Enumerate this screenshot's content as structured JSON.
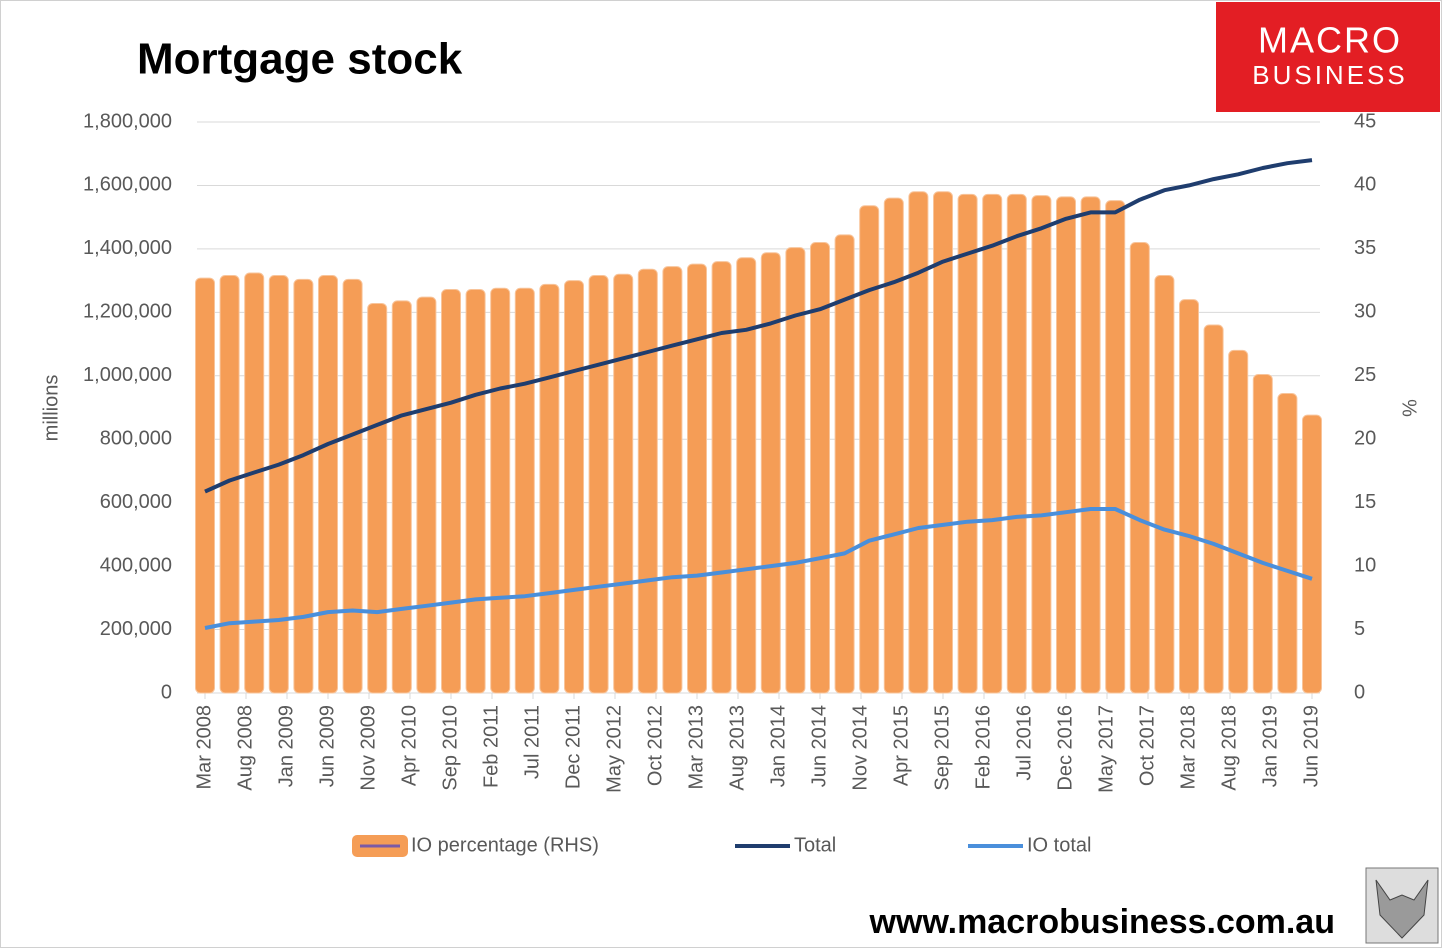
{
  "chart_data": {
    "type": "bar",
    "title": "Mortgage stock",
    "brand": [
      "MACRO",
      "BUSINESS"
    ],
    "footer": "www.macrobusiness.com.au",
    "y_label": "millions",
    "y2_label": "%",
    "x": [
      "2008-03",
      "2008-06",
      "2008-09",
      "2008-12",
      "2009-03",
      "2009-06",
      "2009-09",
      "2009-12",
      "2010-03",
      "2010-06",
      "2010-09",
      "2010-12",
      "2011-03",
      "2011-06",
      "2011-09",
      "2011-12",
      "2012-03",
      "2012-06",
      "2012-09",
      "2012-12",
      "2013-03",
      "2013-06",
      "2013-09",
      "2013-12",
      "2014-03",
      "2014-06",
      "2014-09",
      "2014-12",
      "2015-03",
      "2015-06",
      "2015-09",
      "2015-12",
      "2016-03",
      "2016-06",
      "2016-09",
      "2016-12",
      "2017-03",
      "2017-06",
      "2017-09",
      "2017-12",
      "2018-03",
      "2018-06",
      "2018-09",
      "2018-12",
      "2019-03",
      "2019-06"
    ],
    "xticks": [
      {
        "value": "2008-03",
        "label": "Mar 2008"
      },
      {
        "value": "2008-08",
        "label": "Aug 2008"
      },
      {
        "value": "2009-01",
        "label": "Jan 2009"
      },
      {
        "value": "2009-06",
        "label": "Jun 2009"
      },
      {
        "value": "2009-11",
        "label": "Nov 2009"
      },
      {
        "value": "2010-04",
        "label": "Apr 2010"
      },
      {
        "value": "2010-09",
        "label": "Sep 2010"
      },
      {
        "value": "2011-02",
        "label": "Feb 2011"
      },
      {
        "value": "2011-07",
        "label": "Jul 2011"
      },
      {
        "value": "2011-12",
        "label": "Dec 2011"
      },
      {
        "value": "2012-05",
        "label": "May 2012"
      },
      {
        "value": "2012-10",
        "label": "Oct 2012"
      },
      {
        "value": "2013-03",
        "label": "Mar 2013"
      },
      {
        "value": "2013-08",
        "label": "Aug 2013"
      },
      {
        "value": "2014-01",
        "label": "Jan 2014"
      },
      {
        "value": "2014-06",
        "label": "Jun 2014"
      },
      {
        "value": "2014-11",
        "label": "Nov 2014"
      },
      {
        "value": "2015-04",
        "label": "Apr 2015"
      },
      {
        "value": "2015-09",
        "label": "Sep 2015"
      },
      {
        "value": "2016-02",
        "label": "Feb 2016"
      },
      {
        "value": "2016-07",
        "label": "Jul 2016"
      },
      {
        "value": "2016-12",
        "label": "Dec 2016"
      },
      {
        "value": "2017-05",
        "label": "May 2017"
      },
      {
        "value": "2017-10",
        "label": "Oct 2017"
      },
      {
        "value": "2018-03",
        "label": "Mar 2018"
      },
      {
        "value": "2018-08",
        "label": "Aug 2018"
      },
      {
        "value": "2019-01",
        "label": "Jan 2019"
      },
      {
        "value": "2019-06",
        "label": "Jun 2019"
      }
    ],
    "ylim": [
      0,
      1800000
    ],
    "yticks": [
      0,
      {
        "value": 200000,
        "label": "200,000"
      },
      {
        "value": 400000,
        "label": "400,000"
      },
      {
        "value": 600000,
        "label": "600,000"
      },
      {
        "value": 800000,
        "label": "800,000"
      },
      {
        "value": 1000000,
        "label": "1,000,000"
      },
      {
        "value": 1200000,
        "label": "1,200,000"
      },
      {
        "value": 1400000,
        "label": "1,400,000"
      },
      {
        "value": 1600000,
        "label": "1,600,000"
      },
      {
        "value": 1800000,
        "label": "1,800,000"
      }
    ],
    "y2lim": [
      0,
      45
    ],
    "y2ticks": [
      0,
      5,
      10,
      15,
      20,
      25,
      30,
      35,
      40,
      45
    ],
    "grid": true,
    "series": [
      {
        "name": "IO percentage (RHS)",
        "type": "bar",
        "axis": "y2",
        "color": "#f59d56",
        "values": [
          32.7,
          32.9,
          33.1,
          32.9,
          32.6,
          32.9,
          32.6,
          30.7,
          30.9,
          31.2,
          31.8,
          31.8,
          31.9,
          31.9,
          32.2,
          32.5,
          32.9,
          33.0,
          33.4,
          33.6,
          33.8,
          34.0,
          34.3,
          34.7,
          35.1,
          35.5,
          36.1,
          38.4,
          39.0,
          39.5,
          39.5,
          39.3,
          39.3,
          39.3,
          39.2,
          39.1,
          39.1,
          38.8,
          35.5,
          32.9,
          31.0,
          29.0,
          27.0,
          25.1,
          23.6,
          21.9
        ]
      },
      {
        "name": "Total",
        "type": "line",
        "color": "#1f3d6e",
        "values": [
          635000,
          670000,
          695000,
          720000,
          750000,
          785000,
          815000,
          845000,
          875000,
          895000,
          915000,
          940000,
          960000,
          975000,
          995000,
          1015000,
          1035000,
          1055000,
          1075000,
          1095000,
          1115000,
          1135000,
          1145000,
          1165000,
          1190000,
          1210000,
          1240000,
          1270000,
          1295000,
          1325000,
          1360000,
          1385000,
          1410000,
          1440000,
          1465000,
          1495000,
          1515000,
          1515000,
          1555000,
          1585000,
          1600000,
          1620000,
          1635000,
          1655000,
          1670000,
          1680000
        ]
      },
      {
        "name": "IO total",
        "type": "line",
        "color": "#4a8fdb",
        "values": [
          205000,
          220000,
          225000,
          230000,
          240000,
          255000,
          260000,
          255000,
          265000,
          275000,
          285000,
          295000,
          300000,
          305000,
          315000,
          325000,
          335000,
          345000,
          355000,
          365000,
          370000,
          380000,
          390000,
          400000,
          410000,
          425000,
          440000,
          480000,
          500000,
          520000,
          530000,
          540000,
          545000,
          555000,
          560000,
          570000,
          580000,
          580000,
          545000,
          515000,
          495000,
          470000,
          440000,
          410000,
          385000,
          360000
        ]
      }
    ]
  }
}
